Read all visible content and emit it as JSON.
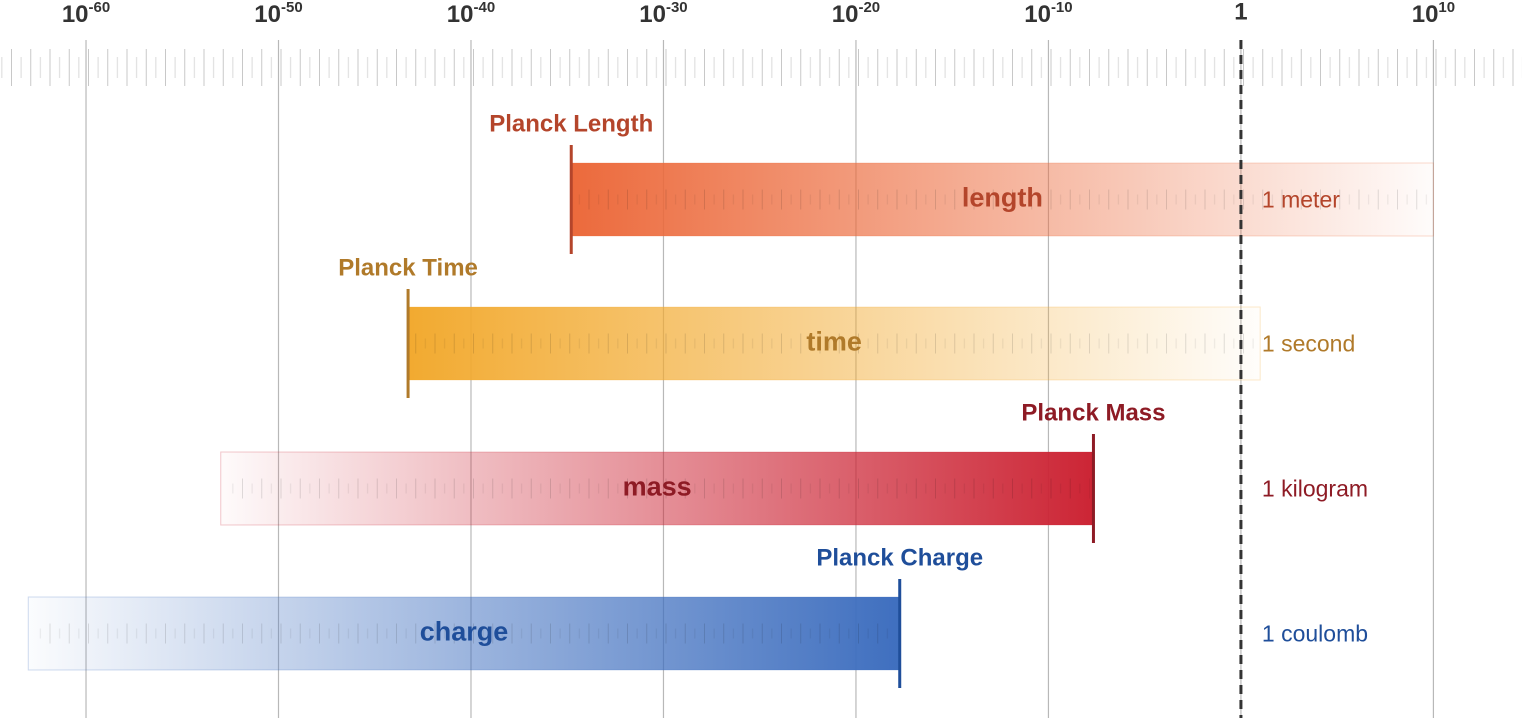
{
  "chart_data": {
    "type": "log_range",
    "xscale": "log",
    "xlim": [
      3.4e-65,
      400000000000000.0
    ],
    "xticks": [
      {
        "value": 1e-60,
        "label": "10",
        "exponent": "-60"
      },
      {
        "value": 1e-50,
        "label": "10",
        "exponent": "-50"
      },
      {
        "value": 1e-40,
        "label": "10",
        "exponent": "-40"
      },
      {
        "value": 1e-30,
        "label": "10",
        "exponent": "-30"
      },
      {
        "value": 1e-20,
        "label": "10",
        "exponent": "-20"
      },
      {
        "value": 1e-10,
        "label": "10",
        "exponent": "-10"
      },
      1,
      {
        "value": 10000000000.0,
        "label": "10",
        "exponent": "10"
      }
    ],
    "grid": true,
    "reference_line": 1,
    "series": [
      {
        "name": "length",
        "marker_label": "Planck Length",
        "unit_label": "1 meter",
        "values": [
          1.616e-35
        ],
        "far_end": 10000000000.0,
        "color": "#ec6a3c",
        "text_color": "#b4452b"
      },
      {
        "name": "time",
        "marker_label": "Planck Time",
        "unit_label": "1 second",
        "values": [
          5.39e-44
        ],
        "far_end": 10.0,
        "color": "#f2aa30",
        "text_color": "#b07a2a"
      },
      {
        "name": "mass",
        "marker_label": "Planck Mass",
        "unit_label": "1 kilogram",
        "values": [
          2.18e-08
        ],
        "far_end": 1e-53,
        "color": "#cc2535",
        "text_color": "#8e1b25"
      },
      {
        "name": "charge",
        "marker_label": "Planck Charge",
        "unit_label": "1 coulomb",
        "values": [
          1.88e-18
        ],
        "far_end": 1e-63,
        "color": "#3f6fbf",
        "text_color": "#1f4e9a"
      }
    ]
  }
}
